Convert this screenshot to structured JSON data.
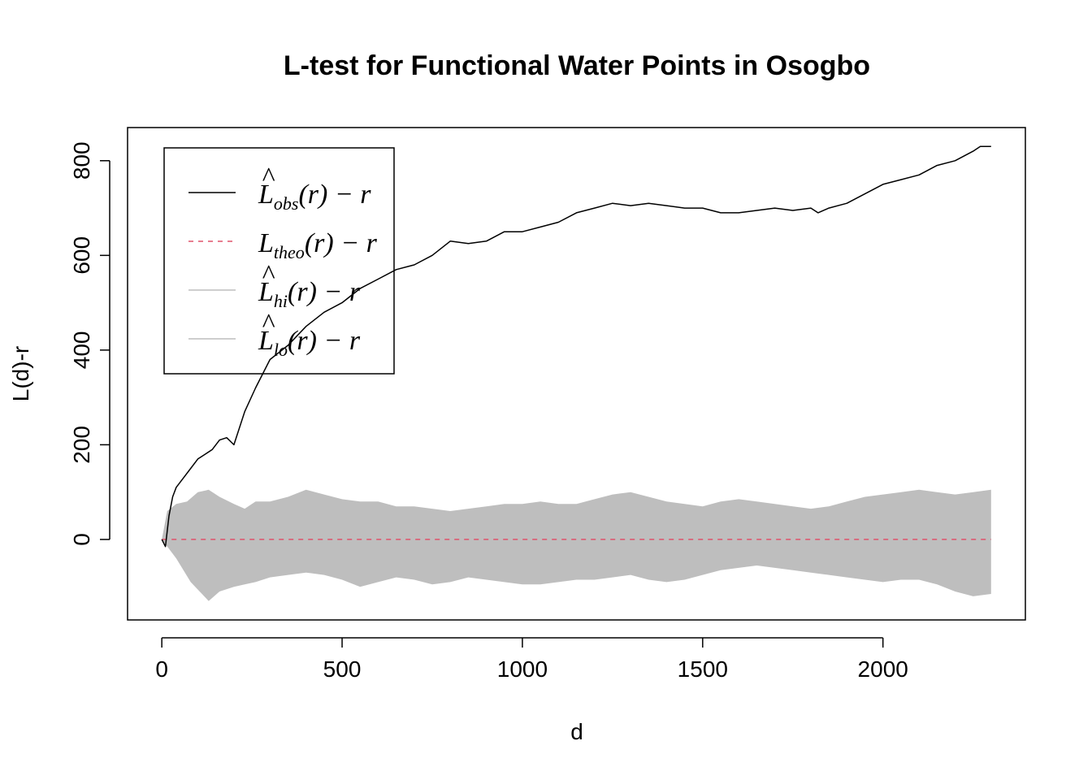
{
  "chart_data": {
    "type": "line",
    "title": "L-test for Functional Water Points in Osogbo",
    "xlabel": "d",
    "ylabel": "L(d)-r",
    "xlim": [
      -95,
      2395
    ],
    "ylim": [
      -170,
      870
    ],
    "x_ticks": [
      "0",
      "500",
      "1000",
      "1500",
      "2000"
    ],
    "x_tick_values": [
      0,
      500,
      1000,
      1500,
      2000
    ],
    "y_ticks": [
      "0",
      "200",
      "400",
      "600",
      "800"
    ],
    "y_tick_values": [
      0,
      200,
      400,
      600,
      800
    ],
    "grid": false,
    "legend_position": "top-left",
    "legend": [
      {
        "base": "L",
        "hat": true,
        "sub": "obs",
        "tail": "(r) − r",
        "style": "solid",
        "color": "#000000"
      },
      {
        "base": "L",
        "hat": false,
        "sub": "theo",
        "tail": "(r) − r",
        "style": "dashed",
        "color": "#DF536B"
      },
      {
        "base": "L",
        "hat": true,
        "sub": "hi",
        "tail": "(r) − r",
        "style": "solid",
        "color": "#BEBEBE"
      },
      {
        "base": "L",
        "hat": true,
        "sub": "lo",
        "tail": "(r) − r",
        "style": "solid",
        "color": "#BEBEBE"
      }
    ],
    "series": [
      {
        "name": "obs",
        "color": "#000000",
        "style": "solid",
        "x": [
          0,
          10,
          20,
          30,
          40,
          60,
          80,
          100,
          120,
          140,
          160,
          180,
          200,
          230,
          260,
          300,
          350,
          400,
          450,
          500,
          550,
          600,
          650,
          700,
          750,
          800,
          850,
          900,
          950,
          1000,
          1050,
          1100,
          1150,
          1200,
          1250,
          1300,
          1350,
          1400,
          1450,
          1500,
          1550,
          1600,
          1650,
          1700,
          1750,
          1800,
          1820,
          1850,
          1900,
          1950,
          2000,
          2050,
          2100,
          2150,
          2200,
          2250,
          2270,
          2300
        ],
        "y": [
          0,
          -15,
          50,
          90,
          110,
          130,
          150,
          170,
          180,
          190,
          210,
          215,
          200,
          270,
          320,
          380,
          410,
          450,
          480,
          500,
          530,
          550,
          570,
          580,
          600,
          630,
          625,
          630,
          650,
          650,
          660,
          670,
          690,
          700,
          710,
          705,
          710,
          705,
          700,
          700,
          690,
          690,
          695,
          700,
          695,
          700,
          690,
          700,
          710,
          730,
          750,
          760,
          770,
          790,
          800,
          820,
          830,
          830
        ]
      },
      {
        "name": "theo",
        "color": "#DF536B",
        "style": "dashed",
        "x": [
          0,
          2300
        ],
        "y": [
          0,
          0
        ]
      },
      {
        "name": "hi",
        "color": "#BEBEBE",
        "x": [
          0,
          15,
          40,
          70,
          100,
          130,
          160,
          200,
          230,
          260,
          300,
          350,
          400,
          450,
          500,
          550,
          600,
          650,
          700,
          750,
          800,
          850,
          900,
          950,
          1000,
          1050,
          1100,
          1150,
          1200,
          1250,
          1300,
          1350,
          1400,
          1450,
          1500,
          1550,
          1600,
          1650,
          1700,
          1750,
          1800,
          1850,
          1900,
          1950,
          2000,
          2050,
          2100,
          2150,
          2200,
          2250,
          2300
        ],
        "y": [
          0,
          60,
          75,
          80,
          100,
          105,
          90,
          75,
          65,
          80,
          80,
          90,
          105,
          95,
          85,
          80,
          80,
          70,
          70,
          65,
          60,
          65,
          70,
          75,
          75,
          80,
          75,
          75,
          85,
          95,
          100,
          90,
          80,
          75,
          70,
          80,
          85,
          80,
          75,
          70,
          65,
          70,
          80,
          90,
          95,
          100,
          105,
          100,
          95,
          100,
          105
        ]
      },
      {
        "name": "lo",
        "color": "#BEBEBE",
        "x": [
          0,
          40,
          80,
          130,
          160,
          200,
          230,
          260,
          300,
          350,
          400,
          450,
          500,
          550,
          600,
          650,
          700,
          750,
          800,
          850,
          900,
          950,
          1000,
          1050,
          1100,
          1150,
          1200,
          1250,
          1300,
          1350,
          1400,
          1450,
          1500,
          1550,
          1600,
          1650,
          1700,
          1750,
          1800,
          1850,
          1900,
          1950,
          2000,
          2050,
          2100,
          2150,
          2200,
          2250,
          2300
        ],
        "y": [
          0,
          -40,
          -90,
          -130,
          -110,
          -100,
          -95,
          -90,
          -80,
          -75,
          -70,
          -75,
          -85,
          -100,
          -90,
          -80,
          -85,
          -95,
          -90,
          -80,
          -85,
          -90,
          -95,
          -95,
          -90,
          -85,
          -85,
          -80,
          -75,
          -85,
          -90,
          -85,
          -75,
          -65,
          -60,
          -55,
          -60,
          -65,
          -70,
          -75,
          -80,
          -85,
          -90,
          -85,
          -85,
          -95,
          -110,
          -120,
          -115
        ]
      }
    ]
  }
}
